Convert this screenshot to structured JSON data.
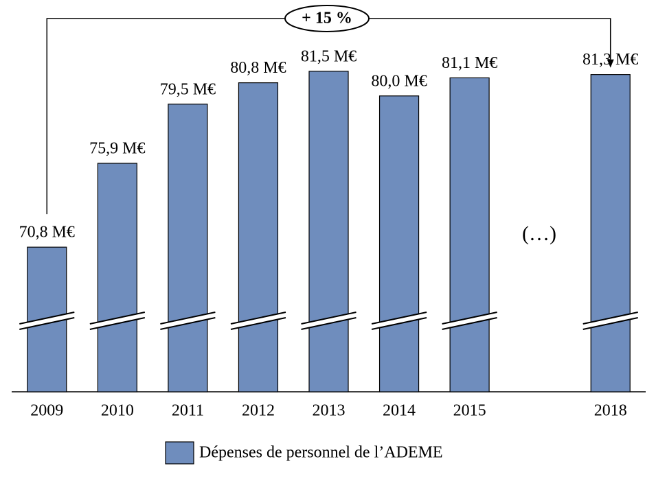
{
  "chart_data": {
    "type": "bar",
    "categories": [
      "2009",
      "2010",
      "2011",
      "2012",
      "2013",
      "2014",
      "2015",
      null,
      "2018"
    ],
    "series": [
      {
        "name": "Dépenses de personnel de l’ADEME",
        "color": "#6f8dbd",
        "values": [
          70.8,
          75.9,
          79.5,
          80.8,
          81.5,
          80.0,
          81.1,
          null,
          81.3
        ],
        "value_labels": [
          "70,8 M€",
          "75,9 M€",
          "79,5 M€",
          "80,8 M€",
          "81,5 M€",
          "80,0 M€",
          "81,1 M€",
          null,
          "81,3 M€"
        ]
      }
    ],
    "ylim": [
      62,
      85
    ],
    "annotation": "+ 15 %",
    "gap_label": "(…)"
  }
}
